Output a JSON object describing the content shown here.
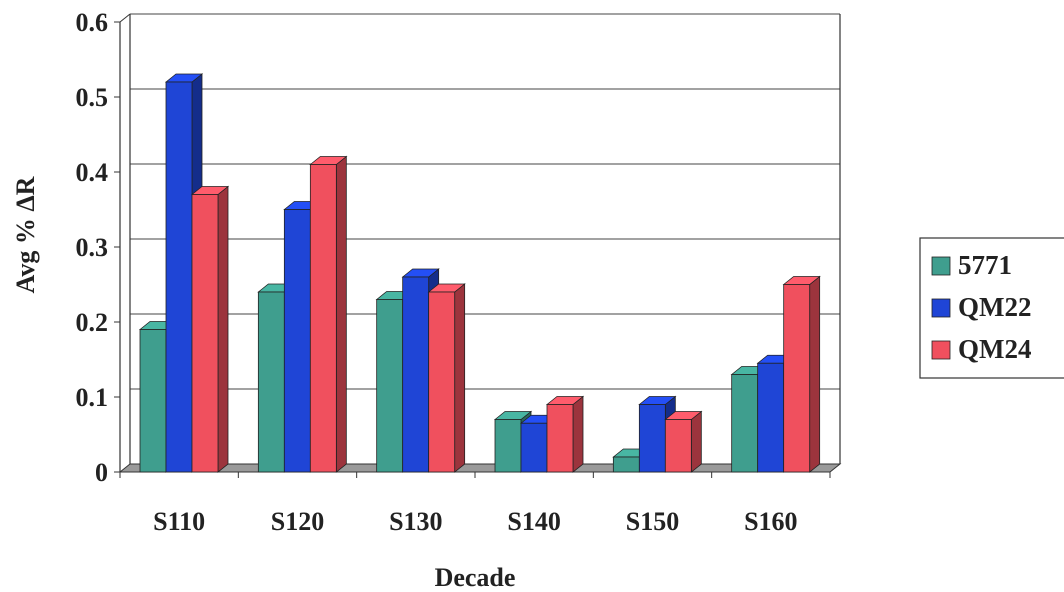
{
  "chart_data": {
    "type": "bar",
    "xlabel": "Decade",
    "ylabel": "Avg % ΔR",
    "categories": [
      "S110",
      "S120",
      "S130",
      "S140",
      "S150",
      "S160"
    ],
    "series": [
      {
        "name": "5771",
        "color": "#3f9e8e",
        "values": [
          0.19,
          0.24,
          0.23,
          0.07,
          0.02,
          0.13
        ]
      },
      {
        "name": "QM22",
        "color": "#1f45d6",
        "values": [
          0.52,
          0.35,
          0.26,
          0.065,
          0.09,
          0.145
        ]
      },
      {
        "name": "QM24",
        "color": "#f0505e",
        "values": [
          0.37,
          0.41,
          0.24,
          0.09,
          0.07,
          0.25
        ]
      }
    ],
    "ylim": [
      0,
      0.6
    ],
    "yticks": [
      "0",
      "0.1",
      "0.2",
      "0.3",
      "0.4",
      "0.5",
      "0.6"
    ],
    "grid": true,
    "legend_position": "right"
  }
}
